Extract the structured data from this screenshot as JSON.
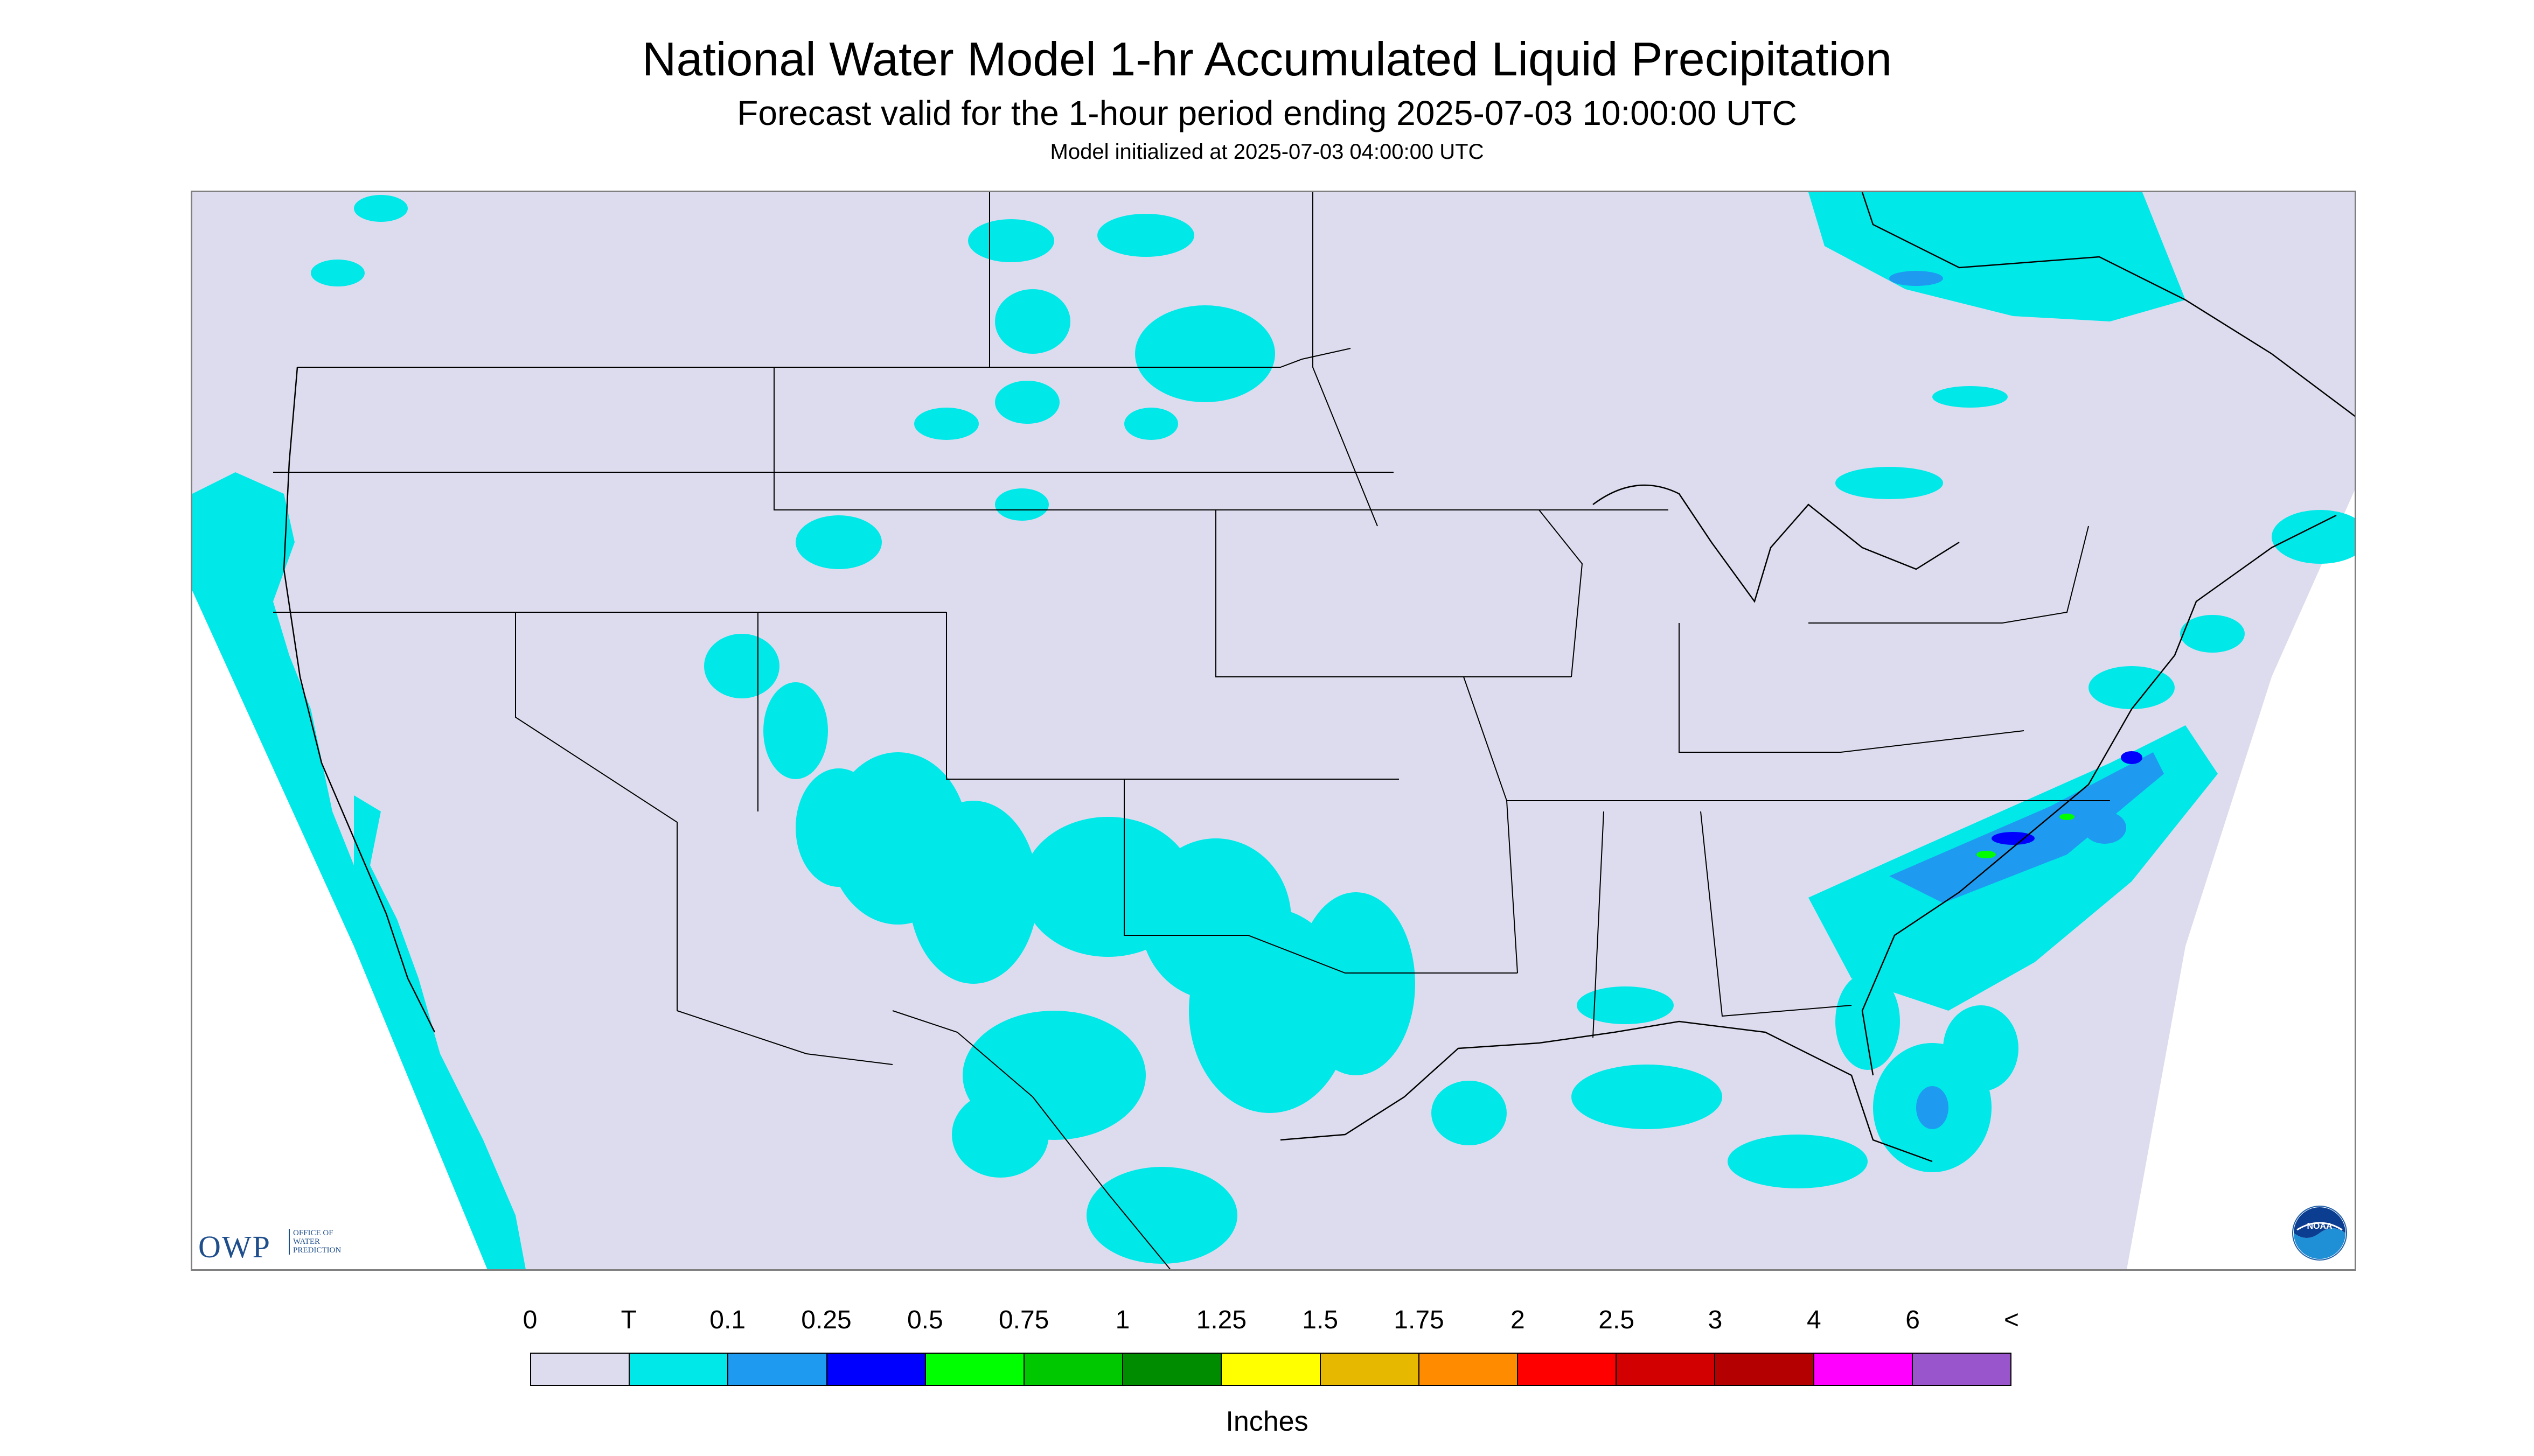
{
  "header": {
    "title": "National Water Model 1-hr Accumulated Liquid Precipitation",
    "subtitle": "Forecast valid for the 1-hour period ending 2025-07-03 10:00:00 UTC",
    "initialized": "Model initialized at 2025-07-03 04:00:00 UTC"
  },
  "logos": {
    "owp_text": "OWP",
    "owp_sub": [
      "OFFICE OF",
      "WATER",
      "PREDICTION"
    ],
    "noaa_text": "NOAA"
  },
  "legend": {
    "labels": [
      "0",
      "T",
      "0.1",
      "0.25",
      "0.5",
      "0.75",
      "1",
      "1.25",
      "1.5",
      "1.75",
      "2",
      "2.5",
      "3",
      "4",
      "6",
      "<"
    ],
    "colors": [
      "#dcdcee",
      "#00e8e8",
      "#1e9bf0",
      "#0000ff",
      "#00ff00",
      "#00c800",
      "#008c00",
      "#ffff00",
      "#e6b800",
      "#ff8c00",
      "#ff0000",
      "#d20000",
      "#b40000",
      "#ff00ff",
      "#9955cc"
    ],
    "units": "Inches"
  },
  "map": {
    "background_color": "#dcdcee",
    "outside_color": "#ffffff",
    "border_color": "#000000",
    "precip_trace_color": "#00e8e8",
    "precip_light_color": "#1e9bf0",
    "precip_heavy_color": "#0000ff",
    "precip_green_color": "#00ff00"
  }
}
